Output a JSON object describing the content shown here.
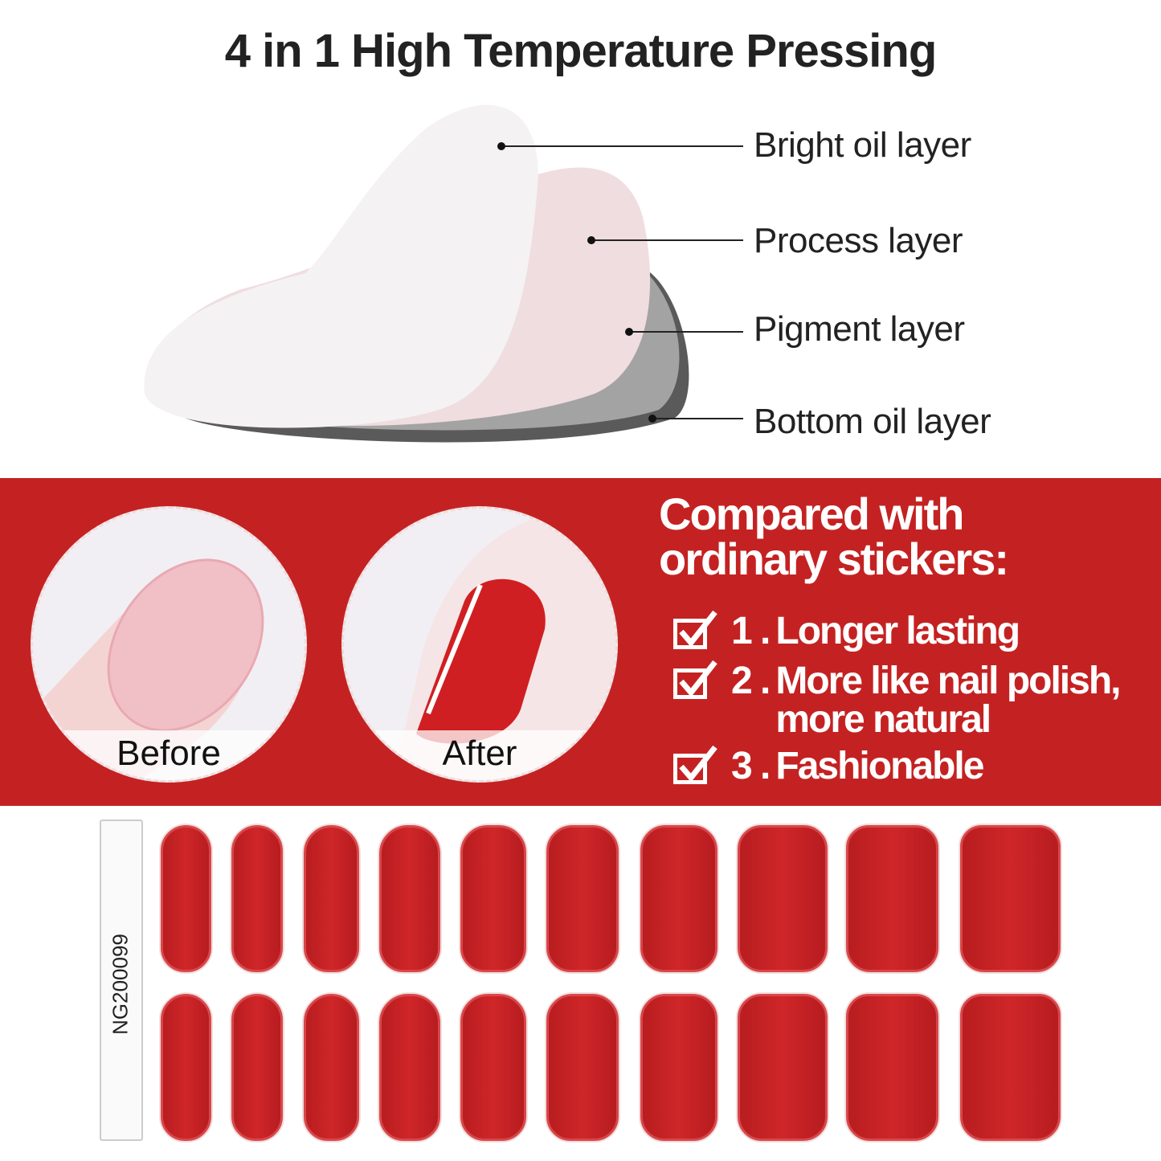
{
  "title": "4 in 1 High Temperature Pressing",
  "layers": [
    "Bright oil layer",
    "Process layer",
    "Pigment layer",
    "Bottom oil layer"
  ],
  "comparison": {
    "heading": "Compared with ordinary stickers:",
    "items": [
      {
        "num": "1 .",
        "text": "Longer lasting"
      },
      {
        "num": "2 .",
        "text": "More like nail polish,",
        "text2": "more natural"
      },
      {
        "num": "3 .",
        "text": "Fashionable"
      }
    ],
    "before_label": "Before",
    "after_label": "After"
  },
  "sheet": {
    "code": "NG200099",
    "nails_per_row": 10,
    "rows": 2
  },
  "colors": {
    "band": "#c42222",
    "nail": "#c82326"
  }
}
